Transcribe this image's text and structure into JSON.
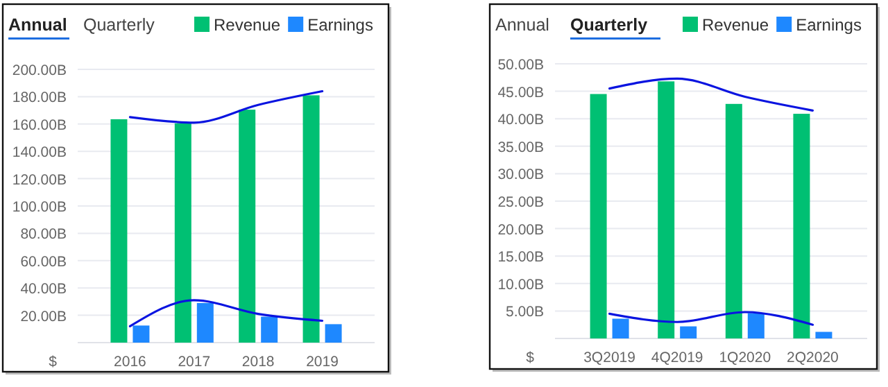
{
  "chart_data": [
    {
      "type": "bar",
      "title": "Annual",
      "subtitle": "Quarterly",
      "ylabel": "$",
      "categories": [
        "2016",
        "2017",
        "2018",
        "2019"
      ],
      "series": [
        {
          "name": "Revenue",
          "color": "#00c073",
          "values": [
            163.5,
            160.5,
            170.5,
            181
          ]
        },
        {
          "name": "Earnings",
          "color": "#1e88ff",
          "values": [
            12.5,
            29,
            19,
            13.5
          ]
        },
        {
          "type": "line",
          "color": "#0a14e0",
          "values": [
            165,
            161,
            174,
            184
          ]
        },
        {
          "type": "line",
          "color": "#0a14e0",
          "values": [
            12,
            31,
            21,
            16
          ]
        }
      ],
      "ylim": [
        0,
        200
      ],
      "yticks": [
        {
          "value": 20,
          "label": "20.00B"
        },
        {
          "value": 40,
          "label": "40.00B"
        },
        {
          "value": 60,
          "label": "60.00B"
        },
        {
          "value": 80,
          "label": "80.00B"
        },
        {
          "value": 100,
          "label": "100.00B"
        },
        {
          "value": 120,
          "label": "120.00B"
        },
        {
          "value": 140,
          "label": "140.00B"
        },
        {
          "value": 160,
          "label": "160.00B"
        },
        {
          "value": 180,
          "label": "180.00B"
        },
        {
          "value": 200,
          "label": "200.00B"
        }
      ],
      "grid": "y",
      "legend": "top right"
    },
    {
      "type": "bar",
      "title": "Quarterly",
      "subtitle": "Annual",
      "ylabel": "$",
      "categories": [
        "3Q2019",
        "4Q2019",
        "1Q2020",
        "2Q2020"
      ],
      "series": [
        {
          "name": "Revenue",
          "color": "#00c073",
          "values": [
            44.5,
            46.8,
            42.7,
            40.9
          ]
        },
        {
          "name": "Earnings",
          "color": "#1e88ff",
          "values": [
            3.6,
            2.2,
            4.6,
            1.2
          ]
        },
        {
          "type": "line",
          "color": "#0a14e0",
          "values": [
            45.5,
            47.3,
            44,
            41.5
          ]
        },
        {
          "type": "line",
          "color": "#0a14e0",
          "values": [
            4.5,
            3,
            4.8,
            2.5
          ]
        }
      ],
      "ylim": [
        0,
        50
      ],
      "yticks": [
        {
          "value": 5,
          "label": "5.00B"
        },
        {
          "value": 10,
          "label": "10.00B"
        },
        {
          "value": 15,
          "label": "15.00B"
        },
        {
          "value": 20,
          "label": "20.00B"
        },
        {
          "value": 25,
          "label": "25.00B"
        },
        {
          "value": 30,
          "label": "30.00B"
        },
        {
          "value": 35,
          "label": "35.00B"
        },
        {
          "value": 40,
          "label": "40.00B"
        },
        {
          "value": 45,
          "label": "45.00B"
        },
        {
          "value": 50,
          "label": "50.00B"
        }
      ],
      "grid": "y",
      "legend": "top right"
    }
  ]
}
